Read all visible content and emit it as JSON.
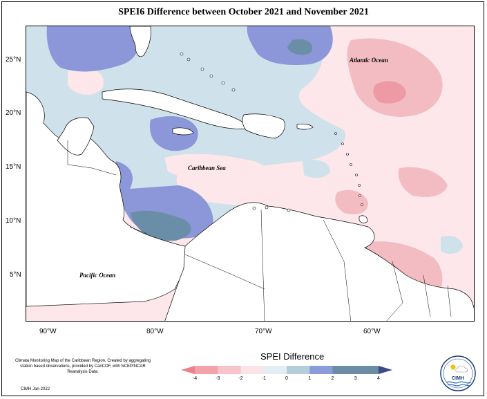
{
  "title": "SPEI6 Difference between October 2021 and November 2021",
  "map": {
    "y_axis_labels": [
      "25°N",
      "20°N",
      "15°N",
      "10°N",
      "5°N"
    ],
    "x_axis_labels": [
      "90°W",
      "80°W",
      "70°W",
      "60°W"
    ],
    "place_labels": {
      "atlantic": "Atlantic Ocean",
      "caribbean": "Caribbean Sea",
      "pacific": "Pacific Ocean"
    },
    "colors": {
      "land": "#ffffff",
      "coast": "#000000",
      "neutral_positive": "#cfe1ea",
      "neutral_negative": "#fde7ea",
      "light_blue": "#a9c3d6",
      "mid_blue": "#7f8fd6",
      "dark_blue": "#6b8ea8",
      "light_red": "#f2bcc2",
      "mid_red": "#ee9aa5",
      "strong_red": "#ef7f88"
    }
  },
  "legend": {
    "title": "SPEI Difference",
    "ticks": [
      "-4",
      "-3",
      "-2",
      "-1",
      "0",
      "1",
      "2",
      "3",
      "4"
    ],
    "colors": [
      "#f07f89",
      "#f3a1aa",
      "#f6c4ca",
      "#fbe3e6",
      "#e2eef3",
      "#b3cfdc",
      "#8c9bdc",
      "#6a8da5",
      "#3d4a86"
    ]
  },
  "credits": {
    "text": "Climate Monitoring Map of the Caribbean Region. Created by aggregating station based observations, provided by CariCOF, with NCEP/NCAR Reanalysis Data.",
    "date": "CIMH Jan-2022",
    "logo_text": "CIMH"
  }
}
